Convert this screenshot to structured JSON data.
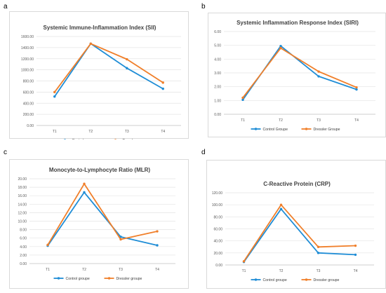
{
  "panels": [
    {
      "label": "a",
      "chart_data": {
        "type": "line",
        "title": "Systemic Immune-Inflammation Index (SII)",
        "categories": [
          "T1",
          "T2",
          "T3",
          "T4"
        ],
        "ylim": [
          0,
          1600
        ],
        "yticks": [
          "0.00",
          "200.00",
          "400.00",
          "600.00",
          "800.00",
          "1000.00",
          "1200.00",
          "1400.00",
          "1600.00"
        ],
        "grid": true,
        "legend": "bottom",
        "series": [
          {
            "name": "Control groupe",
            "color": "#1f8dd6",
            "values": [
              520,
              1470,
              1030,
              660
            ]
          },
          {
            "name": "Dressler groupe",
            "color": "#f07f2a",
            "values": [
              600,
              1470,
              1190,
              770
            ]
          }
        ]
      }
    },
    {
      "label": "b",
      "chart_data": {
        "type": "line",
        "title": "Systemic Inflammation Response Index (SIRI)",
        "categories": [
          "T1",
          "T2",
          "T3",
          "T4"
        ],
        "ylim": [
          0,
          6
        ],
        "yticks": [
          "0.00",
          "1.00",
          "2.00",
          "3.00",
          "4.00",
          "5.00",
          "6.00"
        ],
        "grid": true,
        "legend": "bottom",
        "series": [
          {
            "name": "Control Groupe",
            "color": "#1f8dd6",
            "values": [
              1.05,
              4.95,
              2.75,
              1.8
            ]
          },
          {
            "name": "Dressler Groupe",
            "color": "#f07f2a",
            "values": [
              1.2,
              4.8,
              3.1,
              1.95
            ]
          }
        ]
      }
    },
    {
      "label": "c",
      "chart_data": {
        "type": "line",
        "title": "Monocyte-to-Lymphocyte Ratio (MLR)",
        "categories": [
          "T1",
          "T2",
          "T3",
          "T4"
        ],
        "ylim": [
          0,
          20
        ],
        "yticks": [
          "0.00",
          "2.00",
          "4.00",
          "6.00",
          "8.00",
          "10.00",
          "12.00",
          "14.00",
          "16.00",
          "18.00",
          "20.00"
        ],
        "grid": true,
        "legend": "bottom",
        "series": [
          {
            "name": "Control groupe",
            "color": "#1f8dd6",
            "values": [
              4.2,
              16.8,
              6.3,
              4.3
            ]
          },
          {
            "name": "Dressler groupe",
            "color": "#f07f2a",
            "values": [
              4.4,
              18.8,
              5.7,
              7.6
            ]
          }
        ]
      }
    },
    {
      "label": "d",
      "chart_data": {
        "type": "line",
        "title": "C-Reactive Protein (CRP)",
        "categories": [
          "T1",
          "T2",
          "T3",
          "T4"
        ],
        "ylim": [
          0,
          120
        ],
        "yticks": [
          "0.00",
          "20.00",
          "40.00",
          "60.00",
          "80.00",
          "100.00",
          "120.00"
        ],
        "grid": true,
        "legend": "bottom",
        "series": [
          {
            "name": "Control groupe",
            "color": "#1f8dd6",
            "values": [
              5,
              93,
              20,
              17
            ]
          },
          {
            "name": "Dressler groupe",
            "color": "#f07f2a",
            "values": [
              6,
              100,
              30,
              32
            ]
          }
        ]
      }
    }
  ]
}
